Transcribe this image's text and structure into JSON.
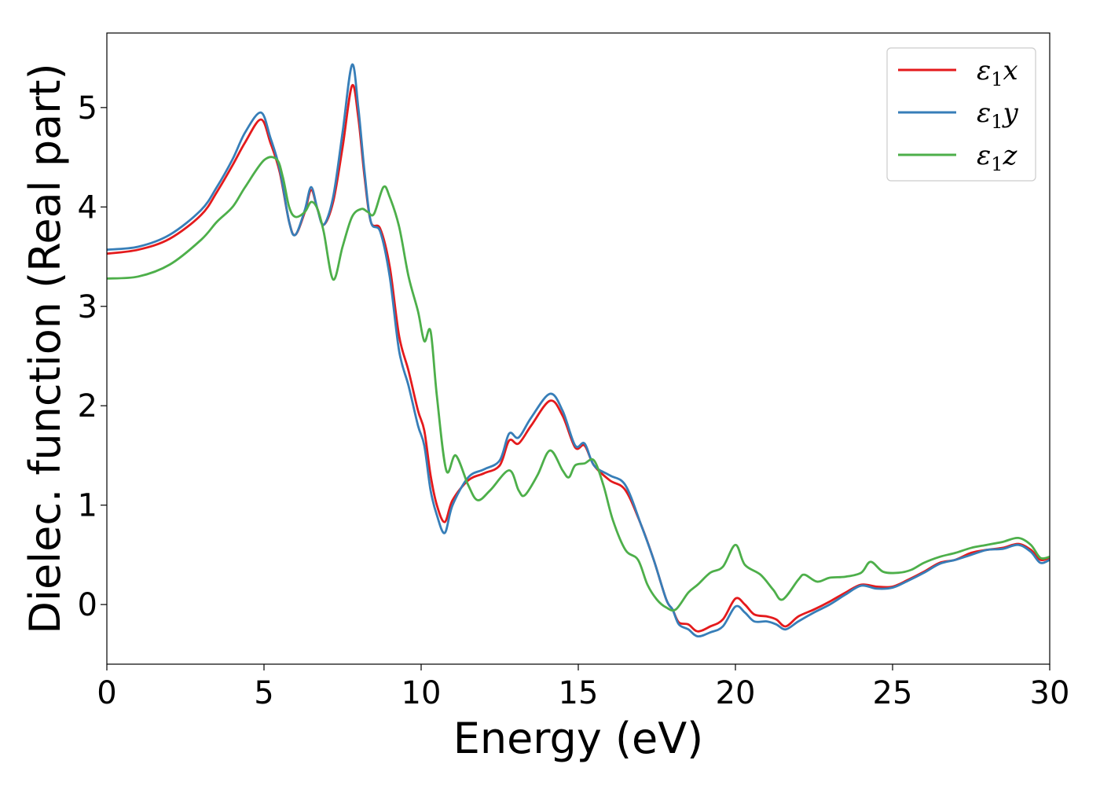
{
  "chart_data": {
    "type": "line",
    "title": "",
    "xlabel": "Energy (eV)",
    "ylabel": "Dielec. function (Real part)",
    "xlim": [
      0,
      30
    ],
    "ylim": [
      -0.6,
      5.75
    ],
    "xticks": [
      0,
      5,
      10,
      15,
      20,
      25,
      30
    ],
    "yticks": [
      0,
      1,
      2,
      3,
      4,
      5
    ],
    "xtick_labels": [
      "0",
      "5",
      "10",
      "15",
      "20",
      "25",
      "30"
    ],
    "ytick_labels": [
      "0",
      "1",
      "2",
      "3",
      "4",
      "5"
    ],
    "grid": false,
    "legend_position": "top-right",
    "series": [
      {
        "name": "ε1x",
        "legend": {
          "base": "ε",
          "sub": "1",
          "tail": "x"
        },
        "color": "#e41a1c",
        "points": [
          [
            0,
            3.53
          ],
          [
            1,
            3.57
          ],
          [
            2,
            3.68
          ],
          [
            3,
            3.92
          ],
          [
            3.5,
            4.15
          ],
          [
            4,
            4.42
          ],
          [
            4.4,
            4.65
          ],
          [
            4.9,
            4.88
          ],
          [
            5.2,
            4.65
          ],
          [
            5.5,
            4.35
          ],
          [
            5.8,
            3.85
          ],
          [
            6.0,
            3.72
          ],
          [
            6.3,
            3.95
          ],
          [
            6.5,
            4.17
          ],
          [
            6.7,
            3.98
          ],
          [
            6.9,
            3.82
          ],
          [
            7.2,
            4.05
          ],
          [
            7.5,
            4.6
          ],
          [
            7.8,
            5.22
          ],
          [
            8.0,
            4.9
          ],
          [
            8.2,
            4.3
          ],
          [
            8.4,
            3.85
          ],
          [
            8.7,
            3.78
          ],
          [
            9.0,
            3.4
          ],
          [
            9.3,
            2.7
          ],
          [
            9.6,
            2.35
          ],
          [
            9.9,
            1.95
          ],
          [
            10.1,
            1.75
          ],
          [
            10.3,
            1.3
          ],
          [
            10.5,
            1.0
          ],
          [
            10.75,
            0.83
          ],
          [
            11.0,
            1.05
          ],
          [
            11.5,
            1.25
          ],
          [
            12.0,
            1.32
          ],
          [
            12.5,
            1.4
          ],
          [
            12.8,
            1.65
          ],
          [
            13.1,
            1.62
          ],
          [
            13.5,
            1.8
          ],
          [
            14.1,
            2.05
          ],
          [
            14.5,
            1.9
          ],
          [
            14.9,
            1.58
          ],
          [
            15.2,
            1.6
          ],
          [
            15.5,
            1.4
          ],
          [
            16.0,
            1.25
          ],
          [
            16.5,
            1.15
          ],
          [
            17.0,
            0.8
          ],
          [
            17.4,
            0.45
          ],
          [
            17.8,
            0.05
          ],
          [
            18.0,
            -0.05
          ],
          [
            18.2,
            -0.18
          ],
          [
            18.5,
            -0.2
          ],
          [
            18.8,
            -0.27
          ],
          [
            19.2,
            -0.22
          ],
          [
            19.6,
            -0.15
          ],
          [
            20.0,
            0.06
          ],
          [
            20.3,
            0.0
          ],
          [
            20.6,
            -0.1
          ],
          [
            21.0,
            -0.12
          ],
          [
            21.3,
            -0.15
          ],
          [
            21.6,
            -0.22
          ],
          [
            22.0,
            -0.12
          ],
          [
            22.5,
            -0.05
          ],
          [
            23.0,
            0.03
          ],
          [
            23.5,
            0.12
          ],
          [
            24.0,
            0.2
          ],
          [
            24.5,
            0.18
          ],
          [
            25.0,
            0.18
          ],
          [
            25.5,
            0.25
          ],
          [
            26.0,
            0.33
          ],
          [
            26.5,
            0.42
          ],
          [
            27.0,
            0.45
          ],
          [
            27.5,
            0.52
          ],
          [
            28.0,
            0.55
          ],
          [
            28.5,
            0.57
          ],
          [
            29.0,
            0.61
          ],
          [
            29.4,
            0.55
          ],
          [
            29.7,
            0.45
          ],
          [
            30.0,
            0.47
          ]
        ]
      },
      {
        "name": "ε1y",
        "legend": {
          "base": "ε",
          "sub": "1",
          "tail": "y"
        },
        "color": "#377eb8",
        "points": [
          [
            0,
            3.57
          ],
          [
            1,
            3.6
          ],
          [
            2,
            3.72
          ],
          [
            3,
            3.97
          ],
          [
            3.5,
            4.2
          ],
          [
            4,
            4.48
          ],
          [
            4.4,
            4.75
          ],
          [
            4.9,
            4.95
          ],
          [
            5.2,
            4.7
          ],
          [
            5.5,
            4.38
          ],
          [
            5.8,
            3.85
          ],
          [
            6.0,
            3.72
          ],
          [
            6.3,
            3.97
          ],
          [
            6.5,
            4.2
          ],
          [
            6.7,
            3.98
          ],
          [
            6.9,
            3.82
          ],
          [
            7.2,
            4.1
          ],
          [
            7.5,
            4.75
          ],
          [
            7.8,
            5.43
          ],
          [
            8.0,
            5.0
          ],
          [
            8.2,
            4.35
          ],
          [
            8.4,
            3.85
          ],
          [
            8.7,
            3.75
          ],
          [
            9.0,
            3.3
          ],
          [
            9.3,
            2.55
          ],
          [
            9.6,
            2.2
          ],
          [
            9.9,
            1.8
          ],
          [
            10.1,
            1.6
          ],
          [
            10.3,
            1.15
          ],
          [
            10.5,
            0.9
          ],
          [
            10.75,
            0.72
          ],
          [
            11.0,
            1.0
          ],
          [
            11.5,
            1.28
          ],
          [
            12.0,
            1.36
          ],
          [
            12.5,
            1.45
          ],
          [
            12.8,
            1.72
          ],
          [
            13.1,
            1.68
          ],
          [
            13.5,
            1.88
          ],
          [
            14.1,
            2.12
          ],
          [
            14.5,
            1.95
          ],
          [
            14.9,
            1.6
          ],
          [
            15.2,
            1.62
          ],
          [
            15.5,
            1.4
          ],
          [
            16.0,
            1.3
          ],
          [
            16.5,
            1.2
          ],
          [
            17.0,
            0.8
          ],
          [
            17.4,
            0.45
          ],
          [
            17.8,
            0.05
          ],
          [
            18.0,
            -0.05
          ],
          [
            18.2,
            -0.2
          ],
          [
            18.5,
            -0.25
          ],
          [
            18.8,
            -0.32
          ],
          [
            19.2,
            -0.28
          ],
          [
            19.6,
            -0.22
          ],
          [
            20.0,
            -0.02
          ],
          [
            20.3,
            -0.08
          ],
          [
            20.6,
            -0.17
          ],
          [
            21.0,
            -0.17
          ],
          [
            21.3,
            -0.2
          ],
          [
            21.6,
            -0.25
          ],
          [
            22.0,
            -0.17
          ],
          [
            22.5,
            -0.08
          ],
          [
            23.0,
            0.0
          ],
          [
            23.5,
            0.1
          ],
          [
            24.0,
            0.19
          ],
          [
            24.5,
            0.16
          ],
          [
            25.0,
            0.17
          ],
          [
            25.5,
            0.24
          ],
          [
            26.0,
            0.32
          ],
          [
            26.5,
            0.41
          ],
          [
            27.0,
            0.45
          ],
          [
            27.5,
            0.5
          ],
          [
            28.0,
            0.55
          ],
          [
            28.5,
            0.56
          ],
          [
            29.0,
            0.6
          ],
          [
            29.4,
            0.53
          ],
          [
            29.7,
            0.42
          ],
          [
            30.0,
            0.45
          ]
        ]
      },
      {
        "name": "ε1z",
        "legend": {
          "base": "ε",
          "sub": "1",
          "tail": "z"
        },
        "color": "#4daf4a",
        "points": [
          [
            0,
            3.28
          ],
          [
            1,
            3.3
          ],
          [
            2,
            3.42
          ],
          [
            3,
            3.67
          ],
          [
            3.5,
            3.85
          ],
          [
            4,
            4.0
          ],
          [
            4.4,
            4.2
          ],
          [
            5.0,
            4.47
          ],
          [
            5.4,
            4.48
          ],
          [
            5.6,
            4.3
          ],
          [
            5.8,
            4.0
          ],
          [
            6.0,
            3.9
          ],
          [
            6.3,
            3.95
          ],
          [
            6.5,
            4.05
          ],
          [
            6.7,
            3.98
          ],
          [
            6.9,
            3.75
          ],
          [
            7.2,
            3.27
          ],
          [
            7.5,
            3.6
          ],
          [
            7.8,
            3.9
          ],
          [
            8.1,
            3.98
          ],
          [
            8.3,
            3.95
          ],
          [
            8.5,
            3.93
          ],
          [
            8.8,
            4.2
          ],
          [
            9.0,
            4.1
          ],
          [
            9.3,
            3.8
          ],
          [
            9.6,
            3.3
          ],
          [
            9.9,
            2.95
          ],
          [
            10.1,
            2.65
          ],
          [
            10.3,
            2.75
          ],
          [
            10.5,
            2.1
          ],
          [
            10.8,
            1.35
          ],
          [
            11.1,
            1.5
          ],
          [
            11.5,
            1.2
          ],
          [
            11.8,
            1.05
          ],
          [
            12.2,
            1.15
          ],
          [
            12.8,
            1.35
          ],
          [
            13.1,
            1.15
          ],
          [
            13.3,
            1.1
          ],
          [
            13.7,
            1.3
          ],
          [
            14.1,
            1.55
          ],
          [
            14.5,
            1.35
          ],
          [
            14.7,
            1.28
          ],
          [
            14.9,
            1.4
          ],
          [
            15.2,
            1.42
          ],
          [
            15.5,
            1.45
          ],
          [
            15.8,
            1.2
          ],
          [
            16.1,
            0.85
          ],
          [
            16.5,
            0.55
          ],
          [
            16.9,
            0.45
          ],
          [
            17.2,
            0.2
          ],
          [
            17.5,
            0.05
          ],
          [
            17.8,
            -0.03
          ],
          [
            18.1,
            -0.05
          ],
          [
            18.5,
            0.12
          ],
          [
            18.8,
            0.2
          ],
          [
            19.2,
            0.32
          ],
          [
            19.6,
            0.38
          ],
          [
            20.0,
            0.6
          ],
          [
            20.3,
            0.4
          ],
          [
            20.8,
            0.3
          ],
          [
            21.2,
            0.15
          ],
          [
            21.5,
            0.05
          ],
          [
            22.0,
            0.25
          ],
          [
            22.2,
            0.3
          ],
          [
            22.6,
            0.23
          ],
          [
            23.0,
            0.27
          ],
          [
            23.5,
            0.28
          ],
          [
            24.0,
            0.32
          ],
          [
            24.3,
            0.43
          ],
          [
            24.7,
            0.33
          ],
          [
            25.2,
            0.32
          ],
          [
            25.6,
            0.35
          ],
          [
            26.0,
            0.42
          ],
          [
            26.5,
            0.48
          ],
          [
            27.0,
            0.52
          ],
          [
            27.5,
            0.57
          ],
          [
            28.0,
            0.6
          ],
          [
            28.5,
            0.63
          ],
          [
            29.0,
            0.67
          ],
          [
            29.4,
            0.6
          ],
          [
            29.7,
            0.47
          ],
          [
            30.0,
            0.48
          ]
        ]
      }
    ]
  }
}
